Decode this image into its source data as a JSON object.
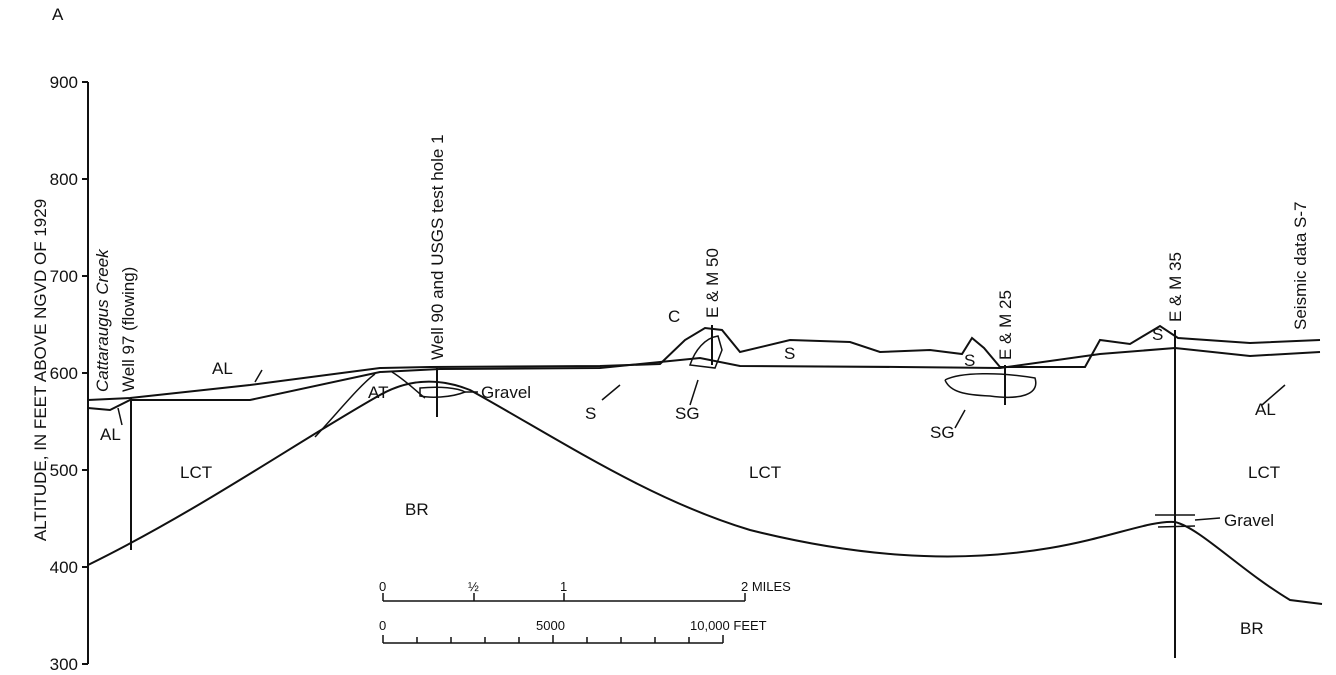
{
  "panel_label": "A",
  "axis": {
    "label": "ALTITUDE, IN FEET ABOVE NGVD OF 1929",
    "ticks": [
      900,
      800,
      700,
      600,
      500,
      400,
      300
    ]
  },
  "sites": [
    "Cattaraugus Creek",
    "Well 97 (flowing)",
    "Well 90 and USGS test hole 1",
    "E & M 50",
    "E & M 25",
    "E & M 35",
    "Seismic data S-7"
  ],
  "units": [
    "AL",
    "AL",
    "AT",
    "Gravel",
    "LCT",
    "BR",
    "S",
    "SG",
    "C",
    "S",
    "S",
    "SG",
    "LCT",
    "S",
    "LCT",
    "AL",
    "Gravel",
    "BR"
  ],
  "scale": {
    "miles": [
      "0",
      "½",
      "1",
      "2 MILES"
    ],
    "feet": [
      "0",
      "5000",
      "10,000 FEET"
    ]
  }
}
